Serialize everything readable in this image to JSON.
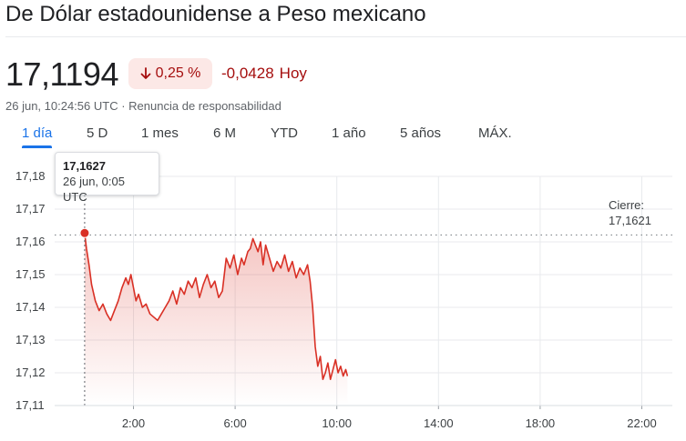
{
  "header": {
    "title": "De Dólar estadounidense a Peso mexicano"
  },
  "quote": {
    "price": "17,1194",
    "change_percent": "0,25 %",
    "change_abs": "-0,0428",
    "change_period": "Hoy",
    "timestamp": "26 jun, 10:24:56 UTC",
    "disclaimer": "Renuncia de responsabilidad",
    "separator": "·",
    "change_direction": "down",
    "down_color": "#a50e0e"
  },
  "range_tabs": {
    "active": "1 día",
    "items": [
      "1 día",
      "5 D",
      "1 mes",
      "6 M",
      "YTD",
      "1 año",
      "5 años",
      "MÁX."
    ]
  },
  "tooltip": {
    "value": "17,1627",
    "time": "26 jun, 0:05 UTC"
  },
  "previous_close": {
    "label": "Cierre:",
    "value": "17,1621"
  },
  "chart_data": {
    "type": "area",
    "x_unit": "hours UTC",
    "xlim": [
      -1.1,
      23.2
    ],
    "ylim": [
      17.11,
      17.18
    ],
    "x_ticks": [
      2,
      6,
      10,
      14,
      18,
      22
    ],
    "x_tick_labels": [
      "2:00",
      "6:00",
      "10:00",
      "14:00",
      "18:00",
      "22:00"
    ],
    "y_ticks": [
      17.11,
      17.12,
      17.13,
      17.14,
      17.15,
      17.16,
      17.17,
      17.18
    ],
    "y_tick_labels": [
      "17,11",
      "17,12",
      "17,13",
      "17,14",
      "17,15",
      "17,16",
      "17,17",
      "17,18"
    ],
    "previous_close": 17.1621,
    "grid": true,
    "line_color": "#d93025",
    "series": [
      {
        "x": [
          0.08,
          0.15,
          0.25,
          0.35,
          0.5,
          0.65,
          0.8,
          0.95,
          1.1,
          1.25,
          1.4,
          1.55,
          1.7,
          1.8,
          1.9,
          2.0,
          2.1,
          2.2,
          2.35,
          2.5,
          2.65,
          2.8,
          2.95,
          3.1,
          3.25,
          3.4,
          3.55,
          3.7,
          3.85,
          4.0,
          4.15,
          4.3,
          4.45,
          4.6,
          4.75,
          4.9,
          5.05,
          5.2,
          5.35,
          5.5,
          5.65,
          5.8,
          5.95,
          6.1,
          6.25,
          6.35,
          6.5,
          6.6,
          6.7,
          6.8,
          6.9,
          7.0,
          7.1,
          7.2,
          7.35,
          7.5,
          7.65,
          7.8,
          7.95,
          8.1,
          8.25,
          8.4,
          8.55,
          8.7,
          8.85,
          8.95,
          9.05,
          9.15,
          9.25,
          9.35,
          9.45,
          9.55,
          9.65,
          9.75,
          9.85,
          9.95,
          10.05,
          10.15,
          10.25,
          10.35,
          10.42
        ],
        "y": [
          17.1627,
          17.158,
          17.153,
          17.147,
          17.142,
          17.139,
          17.141,
          17.138,
          17.136,
          17.139,
          17.142,
          17.146,
          17.149,
          17.147,
          17.15,
          17.146,
          17.142,
          17.144,
          17.14,
          17.141,
          17.138,
          17.137,
          17.136,
          17.138,
          17.14,
          17.142,
          17.145,
          17.141,
          17.146,
          17.144,
          17.148,
          17.146,
          17.149,
          17.143,
          17.147,
          17.15,
          17.146,
          17.148,
          17.143,
          17.145,
          17.155,
          17.152,
          17.156,
          17.15,
          17.155,
          17.153,
          17.157,
          17.158,
          17.161,
          17.159,
          17.157,
          17.16,
          17.153,
          17.159,
          17.155,
          17.151,
          17.154,
          17.152,
          17.156,
          17.151,
          17.154,
          17.149,
          17.152,
          17.15,
          17.153,
          17.148,
          17.14,
          17.128,
          17.122,
          17.125,
          17.118,
          17.12,
          17.123,
          17.118,
          17.121,
          17.124,
          17.12,
          17.122,
          17.119,
          17.121,
          17.119
        ]
      }
    ]
  }
}
